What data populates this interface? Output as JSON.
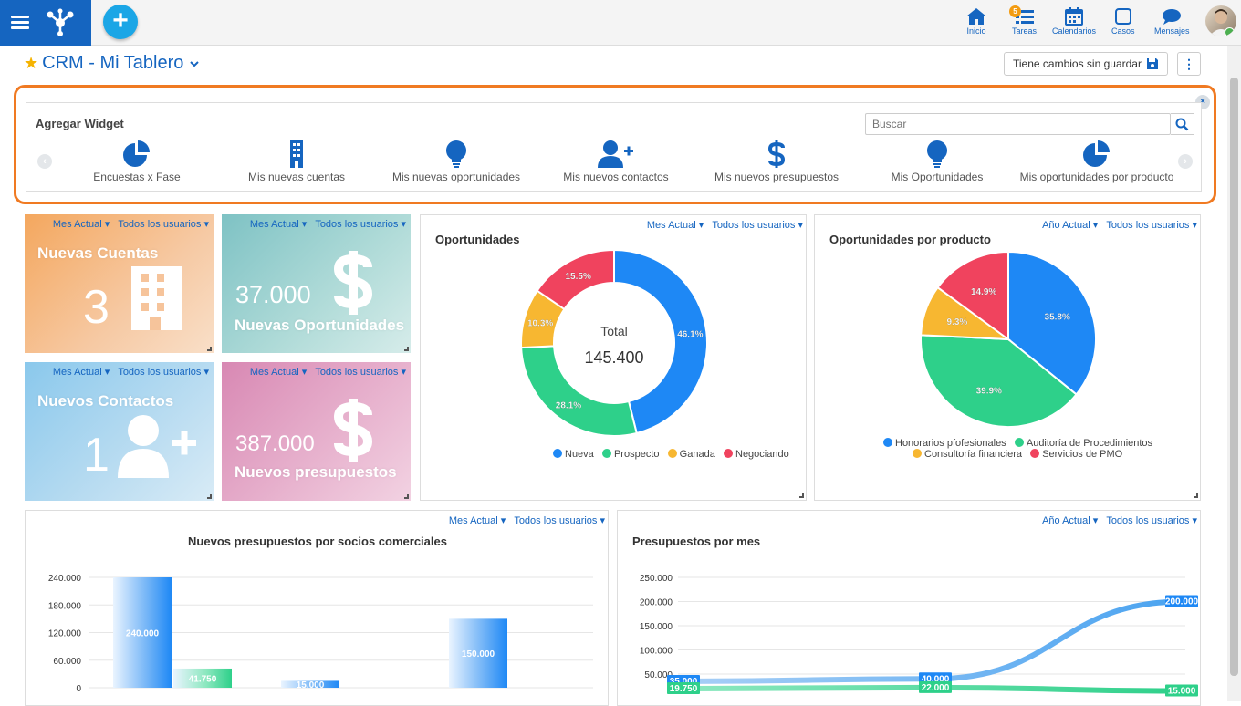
{
  "nav": {
    "items": [
      {
        "label": "Inicio"
      },
      {
        "label": "Tareas",
        "badge": "5"
      },
      {
        "label": "Calendarios"
      },
      {
        "label": "Casos"
      },
      {
        "label": "Mensajes"
      }
    ]
  },
  "header": {
    "title": "CRM - Mi Tablero",
    "save_label": "Tiene cambios sin guardar"
  },
  "widget_panel": {
    "title": "Agregar Widget",
    "search_placeholder": "Buscar",
    "items": [
      {
        "label": "Encuestas x Fase",
        "icon": "pie-chart-icon"
      },
      {
        "label": "Mis nuevas cuentas",
        "icon": "building-icon"
      },
      {
        "label": "Mis nuevas oportunidades",
        "icon": "lightbulb-icon"
      },
      {
        "label": "Mis nuevos contactos",
        "icon": "user-plus-icon"
      },
      {
        "label": "Mis nuevos presupuestos",
        "icon": "dollar-icon"
      },
      {
        "label": "Mis Oportunidades",
        "icon": "lightbulb-icon"
      },
      {
        "label": "Mis oportunidades por producto",
        "icon": "pie-chart-icon"
      }
    ]
  },
  "filters": {
    "month": "Mes Actual",
    "year": "Año Actual",
    "users": "Todos los usuarios"
  },
  "tiles": {
    "accounts": {
      "label": "Nuevas Cuentas",
      "value": "3"
    },
    "opportunities": {
      "label": "Nuevas Oportunidades",
      "value": "37.000"
    },
    "contacts": {
      "label": "Nuevos Contactos",
      "value": "1"
    },
    "budgets": {
      "label": "Nuevos presupuestos",
      "value": "387.000"
    }
  },
  "colors": {
    "blue": "#1e88f5",
    "green": "#2ed08a",
    "orange": "#f7b731",
    "red": "#f0435e",
    "brand": "#1565c0",
    "accent": "#f07a22"
  },
  "chart_data": [
    {
      "type": "pie",
      "title": "Oportunidades",
      "center_label": "Total",
      "center_value": "145.400",
      "slices": [
        {
          "name": "Nueva",
          "value": 46.1,
          "label": "46.1%"
        },
        {
          "name": "Prospecto",
          "value": 28.1,
          "label": "28.1%"
        },
        {
          "name": "Ganada",
          "value": 10.3,
          "label": "10.3%"
        },
        {
          "name": "Negociando",
          "value": 15.5,
          "label": "15.5%"
        }
      ]
    },
    {
      "type": "pie",
      "title": "Oportunidades por producto",
      "slices": [
        {
          "name": "Honorarios pfofesionales",
          "value": 35.8,
          "label": "35.8%"
        },
        {
          "name": "Auditoría de Procedimientos",
          "value": 39.9,
          "label": "39.9%"
        },
        {
          "name": "Consultoría financiera",
          "value": 9.3,
          "label": "9.3%"
        },
        {
          "name": "Servicios de PMO",
          "value": 14.9,
          "label": "14.9%"
        }
      ]
    },
    {
      "type": "bar",
      "title": "Nuevos presupuestos por socios comerciales",
      "ylim": [
        0,
        240000
      ],
      "yticks": [
        "240.000",
        "180.000",
        "120.000",
        "60.000",
        "0"
      ],
      "groups": [
        {
          "values": [
            240000,
            41750
          ],
          "labels": [
            "240.000",
            "41.750"
          ]
        },
        {
          "values": [
            15000,
            0
          ],
          "labels": [
            "15.000",
            ""
          ]
        },
        {
          "values": [
            150000,
            0
          ],
          "labels": [
            "150.000",
            ""
          ]
        }
      ]
    },
    {
      "type": "line",
      "title": "Presupuestos por mes",
      "ylim": [
        0,
        250000
      ],
      "yticks": [
        "250.000",
        "200.000",
        "150.000",
        "100.000",
        "50.000"
      ],
      "series": [
        {
          "values": [
            35000,
            40000,
            200000
          ],
          "labels": [
            "35.000",
            "40.000",
            "200.000"
          ]
        },
        {
          "values": [
            19750,
            22000,
            15000
          ],
          "labels": [
            "19.750",
            "22.000",
            "15.000"
          ]
        }
      ]
    }
  ]
}
